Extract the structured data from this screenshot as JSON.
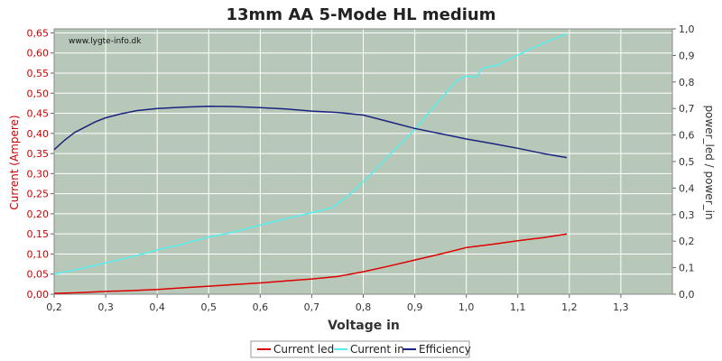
{
  "chart_data": {
    "type": "line",
    "title": "13mm AA 5-Mode HL medium",
    "watermark": "www.lygte-info.dk",
    "xlabel": "Voltage in",
    "ylabel_left": "Current (Ampere)",
    "ylabel_right": "power_led / power_in",
    "xlim": [
      0.2,
      1.4
    ],
    "ylim_left": [
      0,
      0.66
    ],
    "ylim_right": [
      0,
      1.0
    ],
    "x_ticks": [
      0.2,
      0.3,
      0.4,
      0.5,
      0.6,
      0.7,
      0.8,
      0.9,
      1.0,
      1.1,
      1.2,
      1.3
    ],
    "x_tick_labels": [
      "0,2",
      "0,3",
      "0,4",
      "0,5",
      "0,6",
      "0,7",
      "0,8",
      "0,9",
      "1,0",
      "1,1",
      "1,2",
      "1,3"
    ],
    "y_left_ticks": [
      0,
      0.05,
      0.1,
      0.15,
      0.2,
      0.25,
      0.3,
      0.35,
      0.4,
      0.45,
      0.5,
      0.55,
      0.6,
      0.65
    ],
    "y_left_tick_labels": [
      "0,00",
      "0,05",
      "0,10",
      "0,15",
      "0,20",
      "0,25",
      "0,30",
      "0,35",
      "0,40",
      "0,45",
      "0,50",
      "0,55",
      "0,60",
      "0,65"
    ],
    "y_right_ticks": [
      0,
      0.1,
      0.2,
      0.3,
      0.4,
      0.5,
      0.6,
      0.7,
      0.8,
      0.9,
      1.0
    ],
    "y_right_tick_labels": [
      "0,0",
      "0,1",
      "0,2",
      "0,3",
      "0,4",
      "0,5",
      "0,6",
      "0,7",
      "0,8",
      "0,9",
      "1,0"
    ],
    "grid": true,
    "legend_position": "bottom",
    "plot_background": "#b8c8b8",
    "series": [
      {
        "name": "Current led",
        "axis": "left",
        "color": "#dd0000",
        "x": [
          0.2,
          0.25,
          0.3,
          0.35,
          0.4,
          0.45,
          0.5,
          0.55,
          0.6,
          0.65,
          0.7,
          0.75,
          0.8,
          0.85,
          0.9,
          0.95,
          1.0,
          1.05,
          1.1,
          1.15,
          1.195
        ],
        "y": [
          0.002,
          0.004,
          0.007,
          0.009,
          0.012,
          0.016,
          0.02,
          0.024,
          0.028,
          0.033,
          0.038,
          0.044,
          0.056,
          0.07,
          0.085,
          0.1,
          0.116,
          0.124,
          0.133,
          0.141,
          0.15
        ]
      },
      {
        "name": "Current in",
        "axis": "left",
        "color": "#55eeee",
        "x": [
          0.2,
          0.25,
          0.3,
          0.35,
          0.4,
          0.45,
          0.5,
          0.55,
          0.6,
          0.65,
          0.7,
          0.74,
          0.78,
          0.82,
          0.86,
          0.9,
          0.94,
          0.98,
          1.0,
          1.02,
          1.03,
          1.06,
          1.1,
          1.15,
          1.18,
          1.195
        ],
        "y": [
          0.05,
          0.063,
          0.078,
          0.093,
          0.11,
          0.125,
          0.142,
          0.155,
          0.172,
          0.188,
          0.203,
          0.215,
          0.255,
          0.305,
          0.358,
          0.41,
          0.47,
          0.53,
          0.543,
          0.54,
          0.562,
          0.57,
          0.595,
          0.625,
          0.64,
          0.648
        ]
      },
      {
        "name": "Efficiency",
        "axis": "right",
        "color": "#1a237e",
        "x": [
          0.2,
          0.22,
          0.24,
          0.26,
          0.28,
          0.3,
          0.33,
          0.36,
          0.4,
          0.45,
          0.5,
          0.55,
          0.6,
          0.65,
          0.7,
          0.75,
          0.8,
          0.85,
          0.9,
          0.95,
          1.0,
          1.05,
          1.1,
          1.15,
          1.195
        ],
        "y": [
          0.545,
          0.58,
          0.61,
          0.63,
          0.65,
          0.665,
          0.68,
          0.692,
          0.7,
          0.705,
          0.708,
          0.707,
          0.703,
          0.698,
          0.69,
          0.685,
          0.675,
          0.65,
          0.625,
          0.605,
          0.585,
          0.568,
          0.55,
          0.53,
          0.515
        ]
      }
    ]
  }
}
